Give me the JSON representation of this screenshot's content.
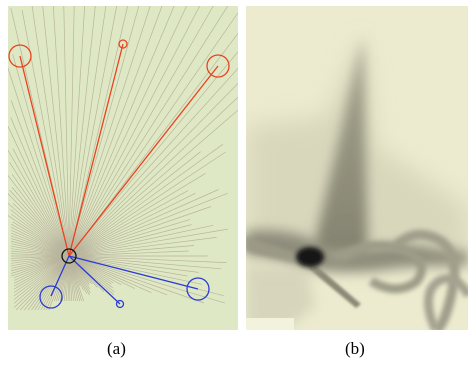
{
  "figure": {
    "panels": [
      {
        "id": "a",
        "caption": "(a)"
      },
      {
        "id": "b",
        "caption": "(b)"
      }
    ],
    "colors": {
      "background_a": "#dfe8c4",
      "rays": "#b9b49d",
      "red_links": "#e8431f",
      "blue_links": "#2b3bd6",
      "center": "#111111",
      "background_b": "#ecebcf"
    }
  }
}
